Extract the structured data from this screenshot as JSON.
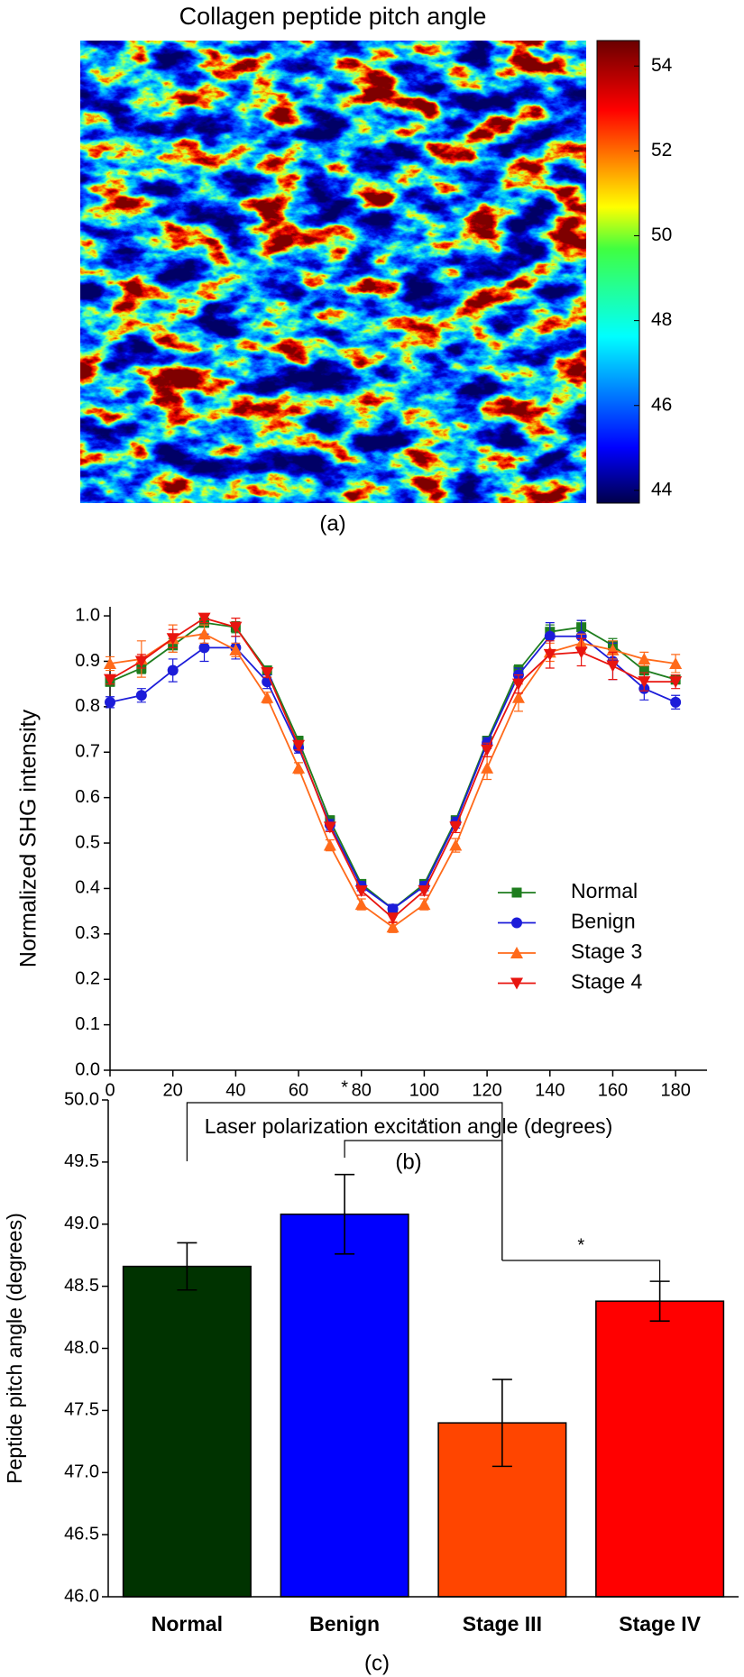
{
  "chart_data": [
    {
      "type": "heatmap",
      "title": "Collagen peptide pitch angle",
      "caption": "(a)",
      "colorbar": {
        "lim": [
          43.7,
          54.6
        ],
        "ticks": [
          44,
          46,
          48,
          50,
          52,
          54
        ]
      }
    },
    {
      "type": "line",
      "caption": "(b)",
      "xlabel": "Laser polarization excitation angle (degrees)",
      "ylabel": "Normalized SHG intensity",
      "x": [
        0,
        10,
        20,
        30,
        40,
        50,
        60,
        70,
        80,
        90,
        100,
        110,
        120,
        130,
        140,
        150,
        160,
        170,
        180
      ],
      "xlim": [
        0,
        190
      ],
      "xticks": [
        0,
        20,
        40,
        60,
        80,
        100,
        120,
        140,
        160,
        180
      ],
      "ylim": [
        0,
        1.02
      ],
      "yticks": [
        {
          "value": 0,
          "label": "0.0"
        },
        0.1,
        0.2,
        0.3,
        0.4,
        0.5,
        0.6,
        0.7,
        0.8,
        0.9,
        {
          "value": 1,
          "label": "1.0"
        }
      ],
      "legend": "lower right",
      "series": [
        {
          "name": "Normal",
          "color": "#1e7d1e",
          "marker": "square",
          "values": [
            0.855,
            0.885,
            0.935,
            0.985,
            0.975,
            0.88,
            0.725,
            0.55,
            0.41,
            0.355,
            0.41,
            0.55,
            0.725,
            0.88,
            0.965,
            0.975,
            0.935,
            0.88,
            0.86
          ],
          "errors": [
            0.01,
            0.012,
            0.015,
            0.01,
            0.012,
            0.008,
            0.01,
            0.01,
            0.008,
            0.008,
            0.008,
            0.01,
            0.01,
            0.012,
            0.015,
            0.015,
            0.015,
            0.01,
            0.01
          ]
        },
        {
          "name": "Benign",
          "color": "#1c1cd9",
          "marker": "circle",
          "values": [
            0.81,
            0.825,
            0.88,
            0.93,
            0.93,
            0.855,
            0.71,
            0.54,
            0.405,
            0.355,
            0.405,
            0.545,
            0.72,
            0.87,
            0.955,
            0.955,
            0.9,
            0.84,
            0.81
          ],
          "errors": [
            0.012,
            0.015,
            0.025,
            0.03,
            0.025,
            0.015,
            0.012,
            0.012,
            0.01,
            0.01,
            0.01,
            0.012,
            0.012,
            0.015,
            0.03,
            0.035,
            0.04,
            0.025,
            0.015
          ]
        },
        {
          "name": "Stage 3",
          "color": "#ff6a1a",
          "marker": "triangle-up",
          "values": [
            0.895,
            0.905,
            0.95,
            0.96,
            0.925,
            0.82,
            0.665,
            0.495,
            0.365,
            0.315,
            0.365,
            0.495,
            0.665,
            0.82,
            0.92,
            0.94,
            0.925,
            0.905,
            0.895
          ],
          "errors": [
            0.015,
            0.04,
            0.03,
            0.02,
            0.015,
            0.012,
            0.012,
            0.012,
            0.012,
            0.012,
            0.012,
            0.015,
            0.025,
            0.03,
            0.02,
            0.02,
            0.02,
            0.015,
            0.02
          ]
        },
        {
          "name": "Stage 4",
          "color": "#e8150f",
          "marker": "triangle-down",
          "values": [
            0.86,
            0.9,
            0.95,
            0.995,
            0.975,
            0.875,
            0.715,
            0.535,
            0.395,
            0.335,
            0.395,
            0.535,
            0.705,
            0.85,
            0.915,
            0.92,
            0.89,
            0.855,
            0.855
          ],
          "errors": [
            0.01,
            0.015,
            0.02,
            0.01,
            0.02,
            0.01,
            0.01,
            0.01,
            0.01,
            0.01,
            0.01,
            0.012,
            0.015,
            0.02,
            0.03,
            0.03,
            0.03,
            0.02,
            0.015
          ]
        }
      ]
    },
    {
      "type": "bar",
      "caption": "(c)",
      "ylabel": "Peptide pitch angle (degrees)",
      "categories": [
        "Normal",
        "Benign",
        "Stage III",
        "Stage IV"
      ],
      "values": [
        48.66,
        49.08,
        47.4,
        48.38
      ],
      "errors": [
        0.19,
        0.32,
        0.35,
        0.16
      ],
      "colors": [
        "#003300",
        "#0000ff",
        "#ff4500",
        "#ff0000"
      ],
      "ylim": [
        46,
        50
      ],
      "yticks": [
        {
          "value": 46,
          "label": "46.0"
        },
        46.5,
        {
          "value": 47,
          "label": "47.0"
        },
        47.5,
        {
          "value": 48,
          "label": "48.0"
        },
        48.5,
        {
          "value": 49,
          "label": "49.0"
        },
        49.5,
        {
          "value": 50,
          "label": "50.0"
        }
      ],
      "significance": [
        {
          "pair": [
            0,
            2
          ],
          "label": "*"
        },
        {
          "pair": [
            1,
            2
          ],
          "label": "*"
        },
        {
          "pair": [
            2,
            3
          ],
          "label": "*"
        }
      ]
    }
  ]
}
